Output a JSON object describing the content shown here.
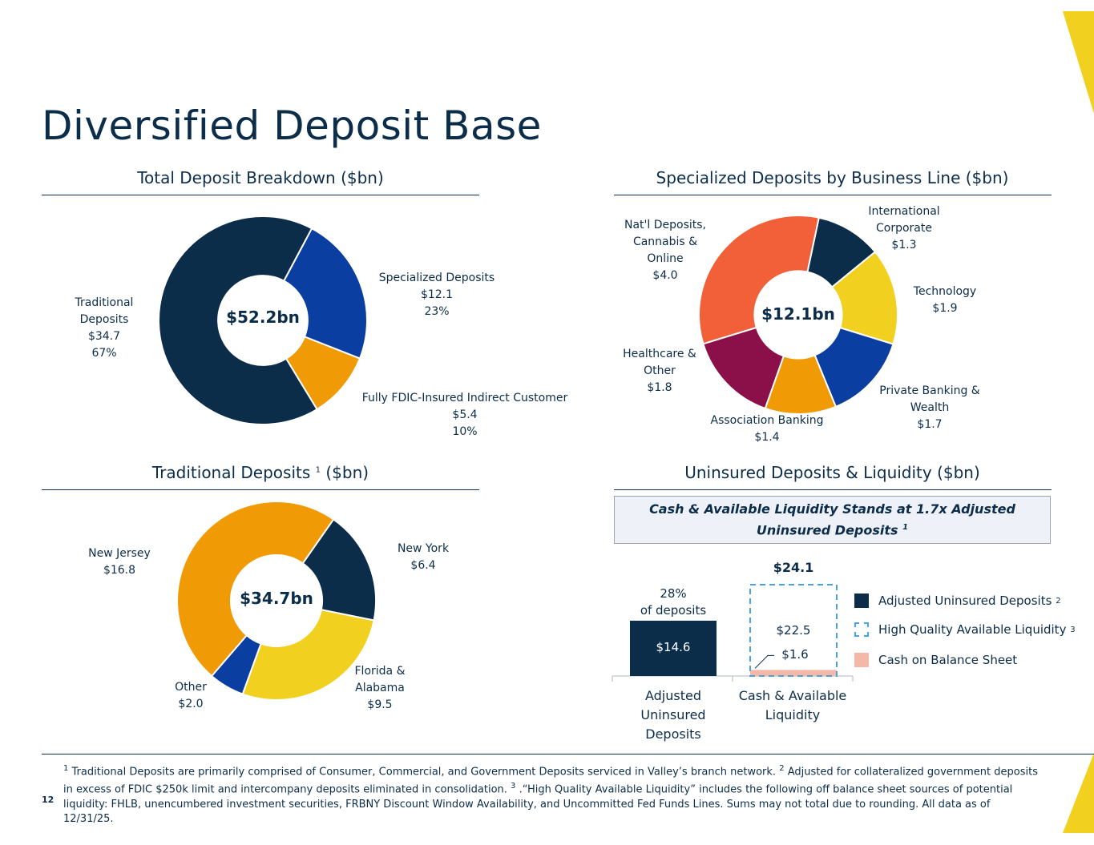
{
  "title": "Diversified Deposit Base",
  "page_number": "12",
  "colors": {
    "navy": "#0c2d4a",
    "accent_yellow": "#f2d01f"
  },
  "chart_data": [
    {
      "id": "total",
      "type": "pie",
      "title": "Total Deposit Breakdown ($bn)",
      "center_label": "$52.2bn",
      "start_deg": 28,
      "slices": [
        {
          "name": "Specialized Deposits",
          "value": 12.1,
          "lines": [
            "Specialized Deposits",
            "$12.1",
            "23%"
          ],
          "color": "#0a3ea0"
        },
        {
          "name": "Fully FDIC-Insured Indirect Customer",
          "value": 5.4,
          "lines": [
            "Fully FDIC-Insured Indirect Customer",
            "$5.4",
            "10%"
          ],
          "color": "#f09a05"
        },
        {
          "name": "Traditional Deposits",
          "value": 34.7,
          "lines": [
            "Traditional",
            "Deposits",
            "$34.7",
            "67%"
          ],
          "color": "#0c2d4a"
        }
      ]
    },
    {
      "id": "specialized",
      "type": "pie",
      "title": "Specialized Deposits by Business Line ($bn)",
      "center_label": "$12.1bn",
      "start_deg": 12,
      "slices": [
        {
          "name": "International Corporate",
          "value": 1.3,
          "lines": [
            "International",
            "Corporate",
            "$1.3"
          ],
          "color": "#0c2d4a"
        },
        {
          "name": "Technology",
          "value": 1.9,
          "lines": [
            "Technology",
            "$1.9"
          ],
          "color": "#f2d01f"
        },
        {
          "name": "Private Banking & Wealth",
          "value": 1.7,
          "lines": [
            "Private Banking &",
            "Wealth",
            "$1.7"
          ],
          "color": "#0a3ea0"
        },
        {
          "name": "Association Banking",
          "value": 1.4,
          "lines": [
            "Association Banking",
            "$1.4"
          ],
          "color": "#f09a05"
        },
        {
          "name": "Healthcare & Other",
          "value": 1.8,
          "lines": [
            "Healthcare &",
            "Other",
            "$1.8"
          ],
          "color": "#8b0f48"
        },
        {
          "name": "Nat'l Deposits, Cannabis & Online",
          "value": 4.0,
          "lines": [
            "Nat'l Deposits,",
            "Cannabis &",
            "Online",
            "$4.0"
          ],
          "color": "#f2603a"
        }
      ]
    },
    {
      "id": "traditional",
      "type": "pie",
      "title": "Traditional Deposits",
      "title_sup": "1",
      "title_suffix": "($bn)",
      "center_label": "$34.7bn",
      "start_deg": 35,
      "slices": [
        {
          "name": "New York",
          "value": 6.4,
          "lines": [
            "New York",
            "$6.4"
          ],
          "color": "#0c2d4a"
        },
        {
          "name": "Florida & Alabama",
          "value": 9.5,
          "lines": [
            "Florida &",
            "Alabama",
            "$9.5"
          ],
          "color": "#f2d01f"
        },
        {
          "name": "Other",
          "value": 2.0,
          "lines": [
            "Other",
            "$2.0"
          ],
          "color": "#0a3ea0"
        },
        {
          "name": "New Jersey",
          "value": 16.8,
          "lines": [
            "New Jersey",
            "$16.8"
          ],
          "color": "#f09a05"
        }
      ]
    },
    {
      "id": "uninsured",
      "type": "bar",
      "title": "Uninsured Deposits & Liquidity ($bn)",
      "callout": {
        "line1": "Cash & Available Liquidity Stands at 1.7x Adjusted",
        "line2": "Uninsured Deposits",
        "sup": "1"
      },
      "categories": [
        {
          "lines": [
            "Adjusted",
            "Uninsured",
            "Deposits"
          ]
        },
        {
          "lines": [
            "Cash & Available",
            "Liquidity"
          ]
        }
      ],
      "ylim": [
        0,
        24.1
      ],
      "bars": [
        {
          "category": 0,
          "segments": [
            {
              "series": "Adjusted Uninsured Deposits",
              "value": 14.6,
              "label": "$14.6"
            }
          ],
          "top_label_lines": [
            "28%",
            "of deposits"
          ]
        },
        {
          "category": 1,
          "segments": [
            {
              "series": "Cash on Balance Sheet",
              "value": 1.6,
              "label": "$1.6"
            },
            {
              "series": "High Quality Available Liquidity",
              "value": 22.5,
              "label": "$22.5"
            }
          ],
          "total_label": "$24.1"
        }
      ],
      "legend": [
        {
          "name": "Adjusted Uninsured Deposits",
          "sup": "2",
          "style": "solid",
          "color": "#0c2d4a"
        },
        {
          "name": "High Quality Available Liquidity",
          "sup": "3",
          "style": "dashed",
          "color": "#4aa3df"
        },
        {
          "name": "Cash on Balance Sheet",
          "sup": "",
          "style": "solid",
          "color": "#f5b8a8"
        }
      ]
    }
  ],
  "footnote": {
    "sup1": "1",
    "text1": "Traditional Deposits are primarily comprised of Consumer, Commercial, and Government Deposits serviced in Valley’s branch network.",
    "sup2": "2",
    "text2": "Adjusted for collateralized government deposits in excess of FDIC $250k limit and intercompany deposits eliminated in consolidation.",
    "sup3": "3",
    "text3": ".“High Quality Available Liquidity” includes the following off balance sheet sources of potential liquidity: FHLB, unencumbered investment securities, FRBNY Discount Window Availability, and Uncommitted Fed Funds Lines. Sums may not total due to rounding.  All data as of 12/31/25."
  }
}
